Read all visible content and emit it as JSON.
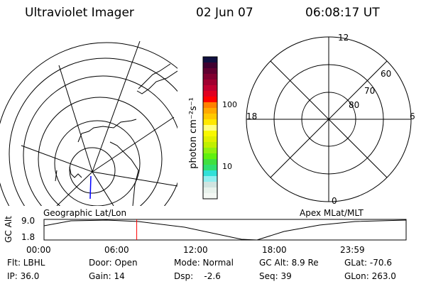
{
  "header": {
    "instrument": "Ultraviolet Imager",
    "date": "02 Jun 07",
    "time": "06:08:17 UT"
  },
  "colorbar": {
    "unit_label": "photon cm⁻²s⁻¹",
    "ticks": [
      "100",
      "10"
    ],
    "colors": [
      "#f4f8f4",
      "#e8f2ec",
      "#d0e4e0",
      "#90eef0",
      "#30e0d8",
      "#30e070",
      "#40e040",
      "#60f010",
      "#90f010",
      "#c0f000",
      "#e0f000",
      "#f8f800",
      "#ffff80",
      "#ffe800",
      "#ffc800",
      "#ffa800",
      "#ff8000",
      "#ff0000",
      "#e00020",
      "#c00030",
      "#a00030",
      "#800030",
      "#600030",
      "#400030",
      "#101040"
    ]
  },
  "map_left": {
    "label": "Geographic Lat/Lon"
  },
  "map_right": {
    "label": "Apex MLat/MLT",
    "mlt_labels": [
      "12",
      "18",
      "6",
      "0"
    ],
    "lat_labels": [
      "60",
      "70",
      "80"
    ]
  },
  "timeline": {
    "ylabel": "GC Alt",
    "yticks": [
      "9.0",
      "1.8"
    ],
    "xticks": [
      "00:00",
      "06:00",
      "12:00",
      "18:00",
      "23:59"
    ],
    "current_time_fraction": 0.256,
    "marker_color": "#ff0000"
  },
  "info": {
    "row1": [
      "Flt: LBHL",
      "Door: Open",
      "Mode: Normal",
      "GC Alt: 8.9 Re",
      "GLat: -70.6"
    ],
    "row2": [
      "IP: 36.0",
      "Gain: 14",
      "Dsp:    -2.6",
      "Seq: 39",
      "GLon: 263.0"
    ]
  }
}
